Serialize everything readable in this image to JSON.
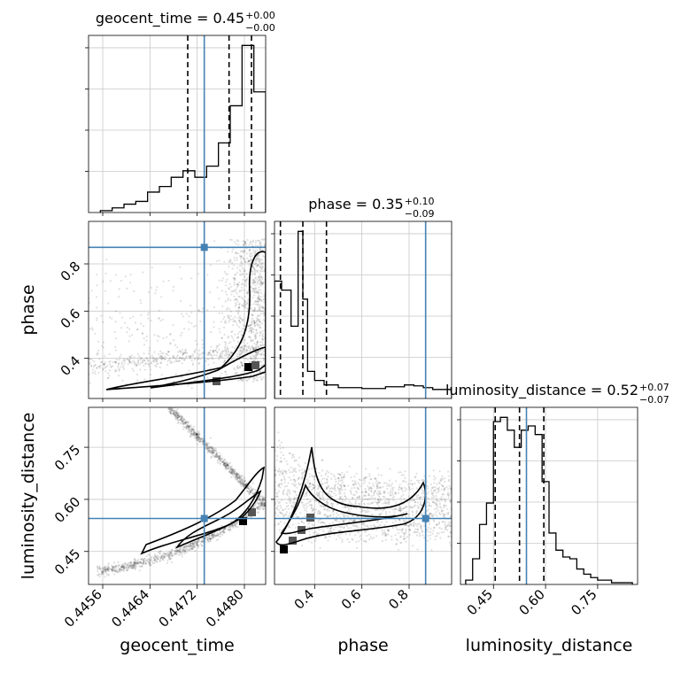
{
  "chart_data": {
    "type": "corner",
    "parameters": [
      "geocent_time",
      "phase",
      "luminosity_distance"
    ],
    "colors": {
      "truth": "#4682b4",
      "hist": "#000000",
      "grid": "#c8c8c8",
      "quantile": "#000000"
    },
    "truths": {
      "geocent_time": 0.44732,
      "phase": 0.87,
      "luminosity_distance": 0.545
    },
    "ranges": {
      "geocent_time": [
        0.44536,
        0.44836
      ],
      "phase": [
        0.23,
        0.98
      ],
      "luminosity_distance": [
        0.355,
        0.865
      ]
    },
    "ticks": {
      "geocent_time": {
        "values": [
          0.4456,
          0.4464,
          0.4472,
          0.448
        ],
        "labels": [
          "0.4456",
          "0.4464",
          "0.4472",
          "0.4480"
        ]
      },
      "phase": {
        "values": [
          0.4,
          0.6,
          0.8
        ],
        "labels": [
          "0.4",
          "0.6",
          "0.8"
        ]
      },
      "luminosity_distance": {
        "values": [
          0.45,
          0.6,
          0.75
        ],
        "labels": [
          "0.45",
          "0.60",
          "0.75"
        ]
      }
    },
    "titles": {
      "geocent_time": {
        "prefix": "geocent_time = 0.45",
        "plus": "+0.00",
        "minus": "−0.00"
      },
      "phase": {
        "prefix": "phase = 0.35",
        "plus": "+0.10",
        "minus": "−0.09"
      },
      "luminosity_distance": {
        "prefix": "luminosity_distance = 0.52",
        "plus": "+0.07",
        "minus": "−0.07"
      }
    },
    "quantiles": {
      "geocent_time": [
        0.44704,
        0.44774,
        0.44812
      ],
      "phase": [
        0.255,
        0.35,
        0.45
      ],
      "luminosity_distance": [
        0.455,
        0.525,
        0.595
      ]
    },
    "histograms": {
      "geocent_time": {
        "edges": [
          0.44556,
          0.44576,
          0.44596,
          0.44616,
          0.44636,
          0.44656,
          0.44676,
          0.44696,
          0.44716,
          0.44736,
          0.44756,
          0.44776,
          0.44796,
          0.44816,
          0.44836
        ],
        "counts": [
          2,
          5,
          9,
          12,
          22,
          28,
          38,
          45,
          38,
          50,
          75,
          115,
          180,
          130
        ]
      },
      "phase": {
        "edges": [
          0.23,
          0.26,
          0.3,
          0.33,
          0.35,
          0.37,
          0.4,
          0.44,
          0.5,
          0.6,
          0.7,
          0.78,
          0.82,
          0.86,
          0.9,
          0.98
        ],
        "counts": [
          130,
          120,
          80,
          185,
          110,
          30,
          20,
          15,
          12,
          11,
          13,
          15,
          14,
          12,
          10
        ]
      },
      "luminosity_distance": {
        "edges": [
          0.37,
          0.39,
          0.41,
          0.43,
          0.45,
          0.47,
          0.49,
          0.51,
          0.53,
          0.55,
          0.57,
          0.59,
          0.61,
          0.63,
          0.65,
          0.67,
          0.69,
          0.71,
          0.73,
          0.75,
          0.79,
          0.85
        ],
        "counts": [
          5,
          30,
          70,
          95,
          190,
          195,
          180,
          160,
          180,
          185,
          175,
          120,
          60,
          40,
          32,
          30,
          18,
          12,
          8,
          5,
          2
        ]
      }
    },
    "scatter_clouds": {
      "phase_vs_geocent_time": {
        "x_range": [
          0.4453,
          0.44836
        ],
        "y_range": [
          0.23,
          0.98
        ],
        "density": "concentrated near x≈0.448 and y≈0.33"
      },
      "luminosity_distance_vs_geocent_time": {
        "x_range": [
          0.4456,
          0.44836
        ],
        "y_range": [
          0.37,
          0.86
        ],
        "density": "two diagonal ridges"
      },
      "luminosity_distance_vs_phase": {
        "x_range": [
          0.23,
          0.98
        ],
        "y_range": [
          0.37,
          0.86
        ],
        "density": "broad cloud, denser at low phase"
      }
    },
    "grid": true
  }
}
